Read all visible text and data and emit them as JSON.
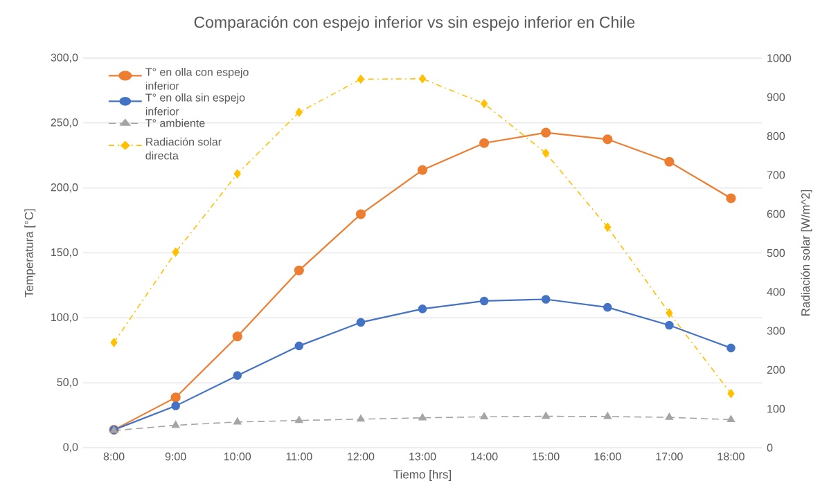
{
  "chart_data": {
    "type": "line",
    "title": "Comparación con espejo inferior vs sin espejo inferior en Chile",
    "xlabel": "Tiemo [hrs]",
    "ylabel": "Temperatura [°C]",
    "y2label": "Radiación solar [W/m^2]",
    "categories": [
      "8:00",
      "9:00",
      "10:00",
      "11:00",
      "12:00",
      "13:00",
      "14:00",
      "15:00",
      "16:00",
      "17:00",
      "18:00"
    ],
    "series": [
      {
        "name": "T° en olla con espejo inferior",
        "color": "#ed7d31",
        "marker": "circle",
        "line_style": "solid",
        "values": [
          13.8,
          38.7,
          85.7,
          136.5,
          179.8,
          213.8,
          234.6,
          242.6,
          237.5,
          220.2,
          192.1
        ]
      },
      {
        "name": "T° en olla sin espejo inferior",
        "color": "#4472c4",
        "marker": "circle",
        "line_style": "solid",
        "values": [
          13.8,
          32.2,
          55.6,
          78.4,
          96.5,
          106.9,
          113.0,
          114.3,
          108.1,
          94.3,
          76.8
        ]
      },
      {
        "name": "T° ambiente",
        "color": "#a5a5a5",
        "marker": "triangle",
        "line_style": "dashed",
        "values": [
          13.2,
          17.3,
          19.8,
          21.0,
          22.0,
          23.0,
          23.8,
          24.2,
          24.0,
          23.4,
          21.6
        ]
      },
      {
        "name": "Radiación solar directa",
        "color": "#ffc000",
        "marker": "diamond",
        "line_style": "dashdot",
        "axis": "y2",
        "values": [
          270,
          502,
          703,
          861,
          946,
          947,
          883,
          756,
          566,
          346,
          139
        ]
      }
    ],
    "ylim": [
      0,
      300
    ],
    "yticks": [
      {
        "value": 0,
        "label": "0,0"
      },
      {
        "value": 50,
        "label": "50,0"
      },
      {
        "value": 100,
        "label": "100,0"
      },
      {
        "value": 150,
        "label": "150,0"
      },
      {
        "value": 200,
        "label": "200,0"
      },
      {
        "value": 250,
        "label": "250,0"
      },
      {
        "value": 300,
        "label": "300,0"
      }
    ],
    "y2lim": [
      0,
      1000
    ],
    "y2ticks": [
      0,
      100,
      200,
      300,
      400,
      500,
      600,
      700,
      800,
      900,
      1000
    ],
    "grid": "y",
    "legend": "top left"
  }
}
